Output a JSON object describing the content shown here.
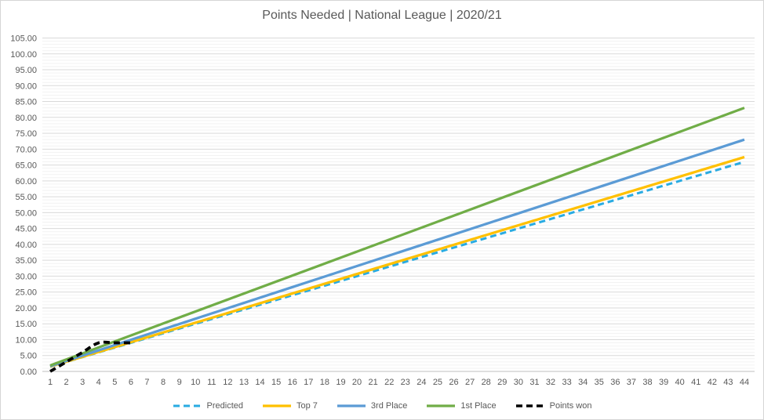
{
  "chart_data": {
    "type": "line",
    "title": "Points Needed | National League | 2020/21",
    "x_axis": {
      "label": "",
      "range": [
        1,
        44
      ],
      "tick_labels": [
        "1",
        "2",
        "3",
        "4",
        "5",
        "6",
        "7",
        "8",
        "9",
        "10",
        "11",
        "12",
        "13",
        "14",
        "15",
        "16",
        "17",
        "18",
        "19",
        "20",
        "21",
        "22",
        "23",
        "24",
        "25",
        "26",
        "27",
        "28",
        "29",
        "30",
        "31",
        "32",
        "33",
        "34",
        "35",
        "36",
        "37",
        "38",
        "39",
        "40",
        "41",
        "42",
        "43",
        "44"
      ]
    },
    "y_axis": {
      "label": "",
      "range": [
        0,
        105
      ],
      "major_step": 5,
      "minor_step": 1,
      "tick_labels": [
        "105.00",
        "100.00",
        "95.00",
        "90.00",
        "85.00",
        "80.00",
        "75.00",
        "70.00",
        "65.00",
        "60.00",
        "55.00",
        "50.00",
        "45.00",
        "40.00",
        "35.00",
        "30.00",
        "25.00",
        "20.00",
        "15.00",
        "10.00",
        "5.00",
        "0.00"
      ]
    },
    "grid": {
      "major": true,
      "minor": true,
      "major_color": "#D9D9D9",
      "minor_color": "#F2F2F2",
      "axis_color": "#BFBFBF"
    },
    "legend": {
      "position": "bottom"
    },
    "series": [
      {
        "name": "Predicted",
        "color": "#29ABE2",
        "style": "dashed",
        "width": 3,
        "smooth": false,
        "points_per_game": 1.5,
        "points": [
          [
            1,
            1.5
          ],
          [
            44,
            66.0
          ]
        ]
      },
      {
        "name": "Top 7",
        "color": "#FFC000",
        "style": "solid",
        "width": 3.25,
        "smooth": false,
        "points_per_game": 1.53,
        "points": [
          [
            1,
            1.53
          ],
          [
            44,
            67.5
          ]
        ]
      },
      {
        "name": "3rd Place",
        "color": "#5B9BD5",
        "style": "solid",
        "width": 3.25,
        "smooth": false,
        "points_per_game": 1.66,
        "points": [
          [
            1,
            1.66
          ],
          [
            44,
            73.0
          ]
        ]
      },
      {
        "name": "1st Place",
        "color": "#70AD47",
        "style": "solid",
        "width": 3.25,
        "smooth": false,
        "points_per_game": 1.89,
        "points": [
          [
            1,
            1.89
          ],
          [
            44,
            83.0
          ]
        ]
      },
      {
        "name": "Points won",
        "color": "#000000",
        "style": "dashed",
        "width": 3.75,
        "smooth": true,
        "points": [
          [
            1,
            0
          ],
          [
            2,
            3
          ],
          [
            3,
            6
          ],
          [
            4,
            9
          ],
          [
            5,
            9
          ],
          [
            6,
            9
          ]
        ]
      }
    ],
    "text_color": "#595959",
    "background": "#FFFFFF",
    "border_color": "#D6D6D6"
  }
}
